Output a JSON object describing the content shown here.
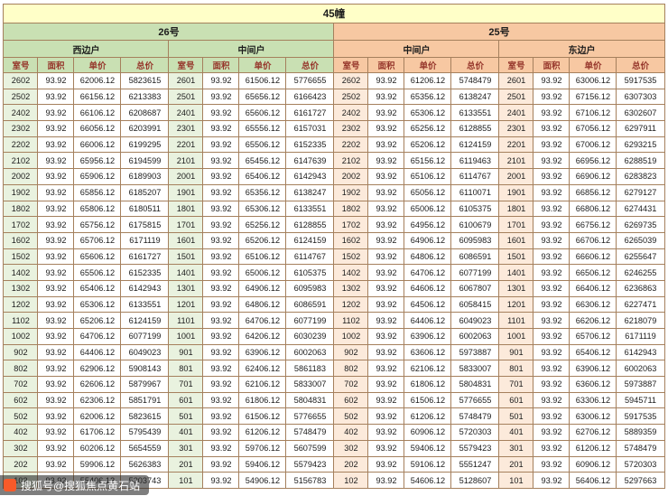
{
  "title": "45幢",
  "buildings": [
    {
      "name": "26号",
      "units": [
        "西边户",
        "中间户"
      ]
    },
    {
      "name": "25号",
      "units": [
        "中间户",
        "东边户"
      ]
    }
  ],
  "column_headers": [
    "室号",
    "面积",
    "单价",
    "总价"
  ],
  "watermark": "搜狐号@搜狐焦点黄石站",
  "colors": {
    "title_bg": "#ffffc8",
    "green_header_bg": "#c9e0b3",
    "salmon_header_bg": "#f7c8a2",
    "green_room_bg": "#e9f2df",
    "salmon_room_bg": "#fceadb",
    "header_text": "#96362b",
    "border": "#a5805d"
  },
  "rows": [
    [
      "2602",
      "93.92",
      "62006.12",
      "5823615",
      "2601",
      "93.92",
      "61506.12",
      "5776655",
      "2602",
      "93.92",
      "61206.12",
      "5748479",
      "2601",
      "93.92",
      "63006.12",
      "5917535"
    ],
    [
      "2502",
      "93.92",
      "66156.12",
      "6213383",
      "2501",
      "93.92",
      "65656.12",
      "6166423",
      "2502",
      "93.92",
      "65356.12",
      "6138247",
      "2501",
      "93.92",
      "67156.12",
      "6307303"
    ],
    [
      "2402",
      "93.92",
      "66106.12",
      "6208687",
      "2401",
      "93.92",
      "65606.12",
      "6161727",
      "2402",
      "93.92",
      "65306.12",
      "6133551",
      "2401",
      "93.92",
      "67106.12",
      "6302607"
    ],
    [
      "2302",
      "93.92",
      "66056.12",
      "6203991",
      "2301",
      "93.92",
      "65556.12",
      "6157031",
      "2302",
      "93.92",
      "65256.12",
      "6128855",
      "2301",
      "93.92",
      "67056.12",
      "6297911"
    ],
    [
      "2202",
      "93.92",
      "66006.12",
      "6199295",
      "2201",
      "93.92",
      "65506.12",
      "6152335",
      "2202",
      "93.92",
      "65206.12",
      "6124159",
      "2201",
      "93.92",
      "67006.12",
      "6293215"
    ],
    [
      "2102",
      "93.92",
      "65956.12",
      "6194599",
      "2101",
      "93.92",
      "65456.12",
      "6147639",
      "2102",
      "93.92",
      "65156.12",
      "6119463",
      "2101",
      "93.92",
      "66956.12",
      "6288519"
    ],
    [
      "2002",
      "93.92",
      "65906.12",
      "6189903",
      "2001",
      "93.92",
      "65406.12",
      "6142943",
      "2002",
      "93.92",
      "65106.12",
      "6114767",
      "2001",
      "93.92",
      "66906.12",
      "6283823"
    ],
    [
      "1902",
      "93.92",
      "65856.12",
      "6185207",
      "1901",
      "93.92",
      "65356.12",
      "6138247",
      "1902",
      "93.92",
      "65056.12",
      "6110071",
      "1901",
      "93.92",
      "66856.12",
      "6279127"
    ],
    [
      "1802",
      "93.92",
      "65806.12",
      "6180511",
      "1801",
      "93.92",
      "65306.12",
      "6133551",
      "1802",
      "93.92",
      "65006.12",
      "6105375",
      "1801",
      "93.92",
      "66806.12",
      "6274431"
    ],
    [
      "1702",
      "93.92",
      "65756.12",
      "6175815",
      "1701",
      "93.92",
      "65256.12",
      "6128855",
      "1702",
      "93.92",
      "64956.12",
      "6100679",
      "1701",
      "93.92",
      "66756.12",
      "6269735"
    ],
    [
      "1602",
      "93.92",
      "65706.12",
      "6171119",
      "1601",
      "93.92",
      "65206.12",
      "6124159",
      "1602",
      "93.92",
      "64906.12",
      "6095983",
      "1601",
      "93.92",
      "66706.12",
      "6265039"
    ],
    [
      "1502",
      "93.92",
      "65606.12",
      "6161727",
      "1501",
      "93.92",
      "65106.12",
      "6114767",
      "1502",
      "93.92",
      "64806.12",
      "6086591",
      "1501",
      "93.92",
      "66606.12",
      "6255647"
    ],
    [
      "1402",
      "93.92",
      "65506.12",
      "6152335",
      "1401",
      "93.92",
      "65006.12",
      "6105375",
      "1402",
      "93.92",
      "64706.12",
      "6077199",
      "1401",
      "93.92",
      "66506.12",
      "6246255"
    ],
    [
      "1302",
      "93.92",
      "65406.12",
      "6142943",
      "1301",
      "93.92",
      "64906.12",
      "6095983",
      "1302",
      "93.92",
      "64606.12",
      "6067807",
      "1301",
      "93.92",
      "66406.12",
      "6236863"
    ],
    [
      "1202",
      "93.92",
      "65306.12",
      "6133551",
      "1201",
      "93.92",
      "64806.12",
      "6086591",
      "1202",
      "93.92",
      "64506.12",
      "6058415",
      "1201",
      "93.92",
      "66306.12",
      "6227471"
    ],
    [
      "1102",
      "93.92",
      "65206.12",
      "6124159",
      "1101",
      "93.92",
      "64706.12",
      "6077199",
      "1102",
      "93.92",
      "64406.12",
      "6049023",
      "1101",
      "93.92",
      "66206.12",
      "6218079"
    ],
    [
      "1002",
      "93.92",
      "64706.12",
      "6077199",
      "1001",
      "93.92",
      "64206.12",
      "6030239",
      "1002",
      "93.92",
      "63906.12",
      "6002063",
      "1001",
      "93.92",
      "65706.12",
      "6171119"
    ],
    [
      "902",
      "93.92",
      "64406.12",
      "6049023",
      "901",
      "93.92",
      "63906.12",
      "6002063",
      "902",
      "93.92",
      "63606.12",
      "5973887",
      "901",
      "93.92",
      "65406.12",
      "6142943"
    ],
    [
      "802",
      "93.92",
      "62906.12",
      "5908143",
      "801",
      "93.92",
      "62406.12",
      "5861183",
      "802",
      "93.92",
      "62106.12",
      "5833007",
      "801",
      "93.92",
      "63906.12",
      "6002063"
    ],
    [
      "702",
      "93.92",
      "62606.12",
      "5879967",
      "701",
      "93.92",
      "62106.12",
      "5833007",
      "702",
      "93.92",
      "61806.12",
      "5804831",
      "701",
      "93.92",
      "63606.12",
      "5973887"
    ],
    [
      "602",
      "93.92",
      "62306.12",
      "5851791",
      "601",
      "93.92",
      "61806.12",
      "5804831",
      "602",
      "93.92",
      "61506.12",
      "5776655",
      "601",
      "93.92",
      "63306.12",
      "5945711"
    ],
    [
      "502",
      "93.92",
      "62006.12",
      "5823615",
      "501",
      "93.92",
      "61506.12",
      "5776655",
      "502",
      "93.92",
      "61206.12",
      "5748479",
      "501",
      "93.92",
      "63006.12",
      "5917535"
    ],
    [
      "402",
      "93.92",
      "61706.12",
      "5795439",
      "401",
      "93.92",
      "61206.12",
      "5748479",
      "402",
      "93.92",
      "60906.12",
      "5720303",
      "401",
      "93.92",
      "62706.12",
      "5889359"
    ],
    [
      "302",
      "93.92",
      "60206.12",
      "5654559",
      "301",
      "93.92",
      "59706.12",
      "5607599",
      "302",
      "93.92",
      "59406.12",
      "5579423",
      "301",
      "93.92",
      "61206.12",
      "5748479"
    ],
    [
      "202",
      "93.92",
      "59906.12",
      "5626383",
      "201",
      "93.92",
      "59406.12",
      "5579423",
      "202",
      "93.92",
      "59106.12",
      "5551247",
      "201",
      "93.92",
      "60906.12",
      "5720303"
    ],
    [
      "102",
      "93.92",
      "55406.12",
      "5203743",
      "101",
      "93.92",
      "54906.12",
      "5156783",
      "102",
      "93.92",
      "54606.12",
      "5128607",
      "101",
      "93.92",
      "56406.12",
      "5297663"
    ]
  ]
}
